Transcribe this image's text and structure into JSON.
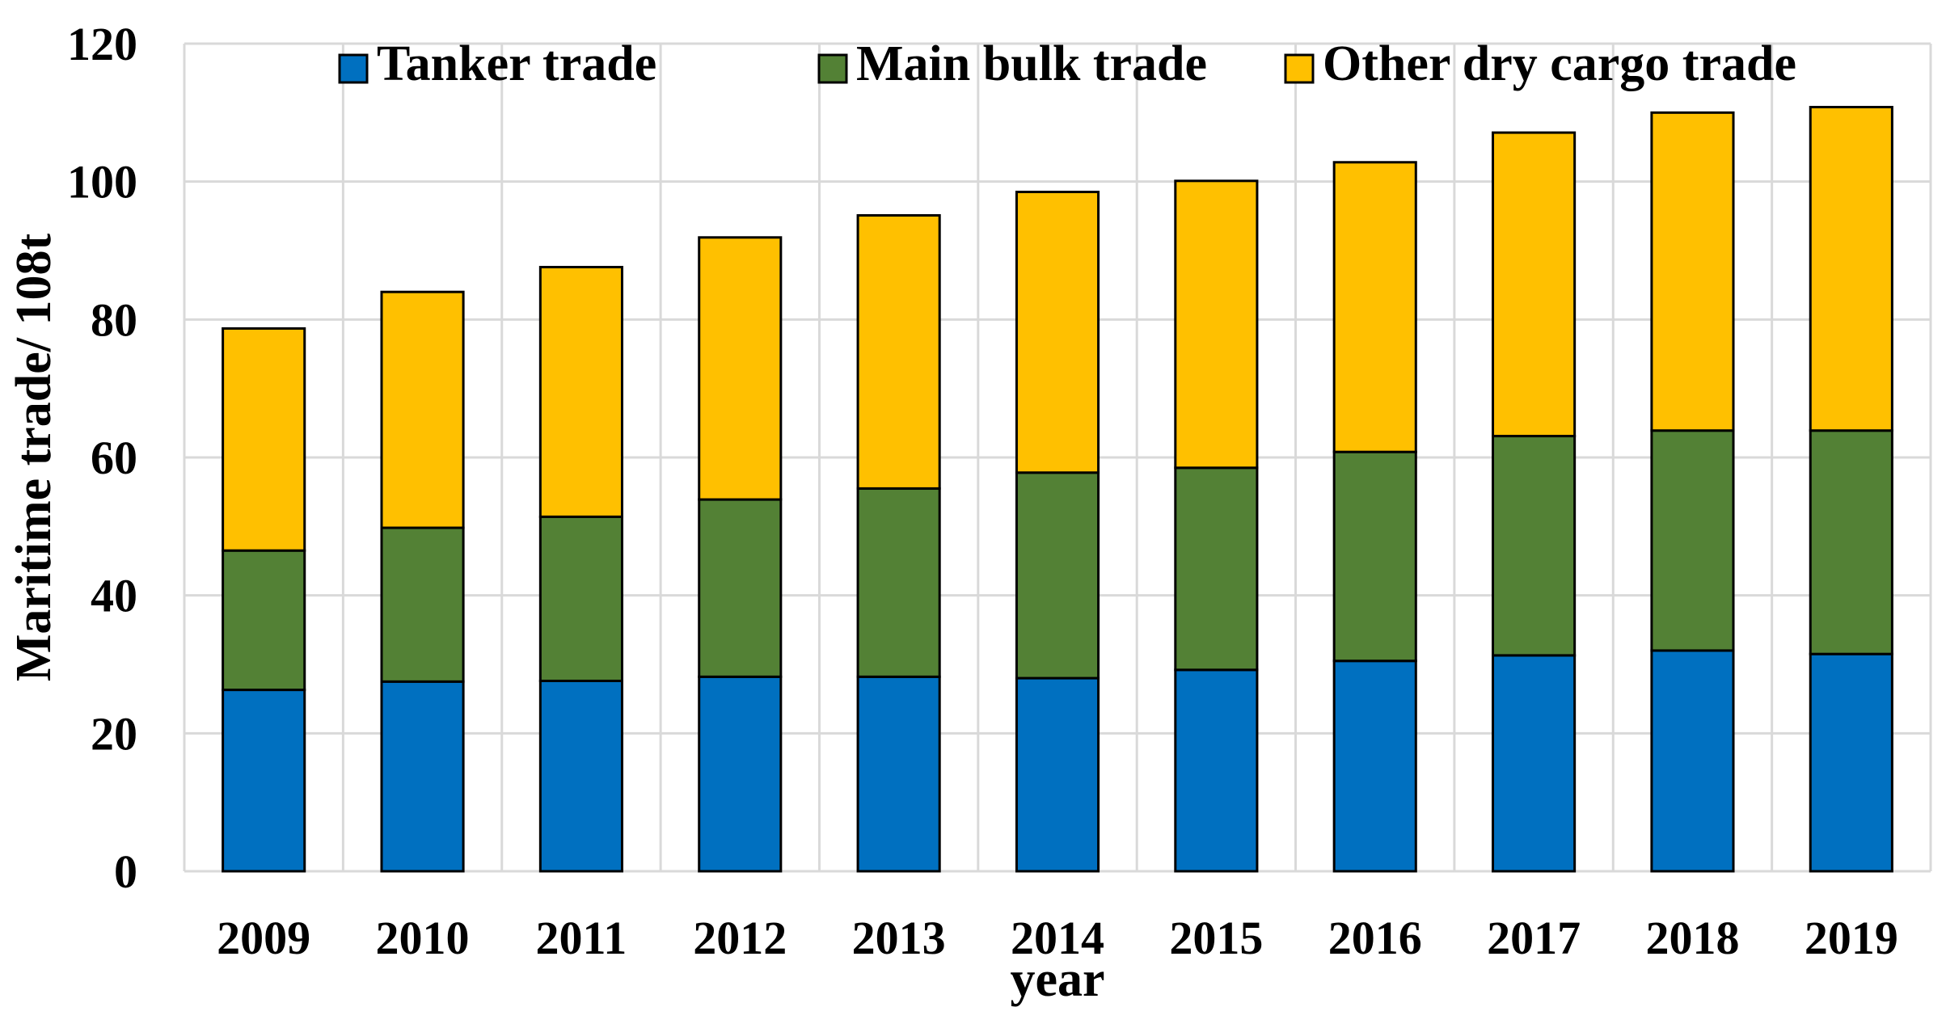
{
  "chart_data": {
    "type": "bar",
    "stacked": true,
    "categories": [
      "2009",
      "2010",
      "2011",
      "2012",
      "2013",
      "2014",
      "2015",
      "2016",
      "2017",
      "2018",
      "2019"
    ],
    "series": [
      {
        "name": "Tanker trade",
        "color": "#0070C0",
        "values": [
          26.3,
          27.5,
          27.6,
          28.2,
          28.2,
          28.0,
          29.2,
          30.5,
          31.3,
          32.0,
          31.5
        ]
      },
      {
        "name": "Main bulk trade",
        "color": "#538135",
        "values": [
          20.2,
          22.3,
          23.8,
          25.7,
          27.3,
          29.8,
          29.3,
          30.3,
          31.8,
          31.9,
          32.4
        ]
      },
      {
        "name": "Other dry cargo trade",
        "color": "#FFC000",
        "values": [
          32.2,
          34.2,
          36.2,
          38.0,
          39.6,
          40.7,
          41.6,
          42.0,
          44.0,
          46.1,
          46.9
        ]
      }
    ],
    "xlabel": "year",
    "ylabel": "Maritime trade/ 108t",
    "ylim": [
      0,
      120
    ],
    "yticks": [
      "0",
      "20",
      "40",
      "60",
      "80",
      "100",
      "120"
    ],
    "grid": true,
    "legend_position": "top"
  }
}
